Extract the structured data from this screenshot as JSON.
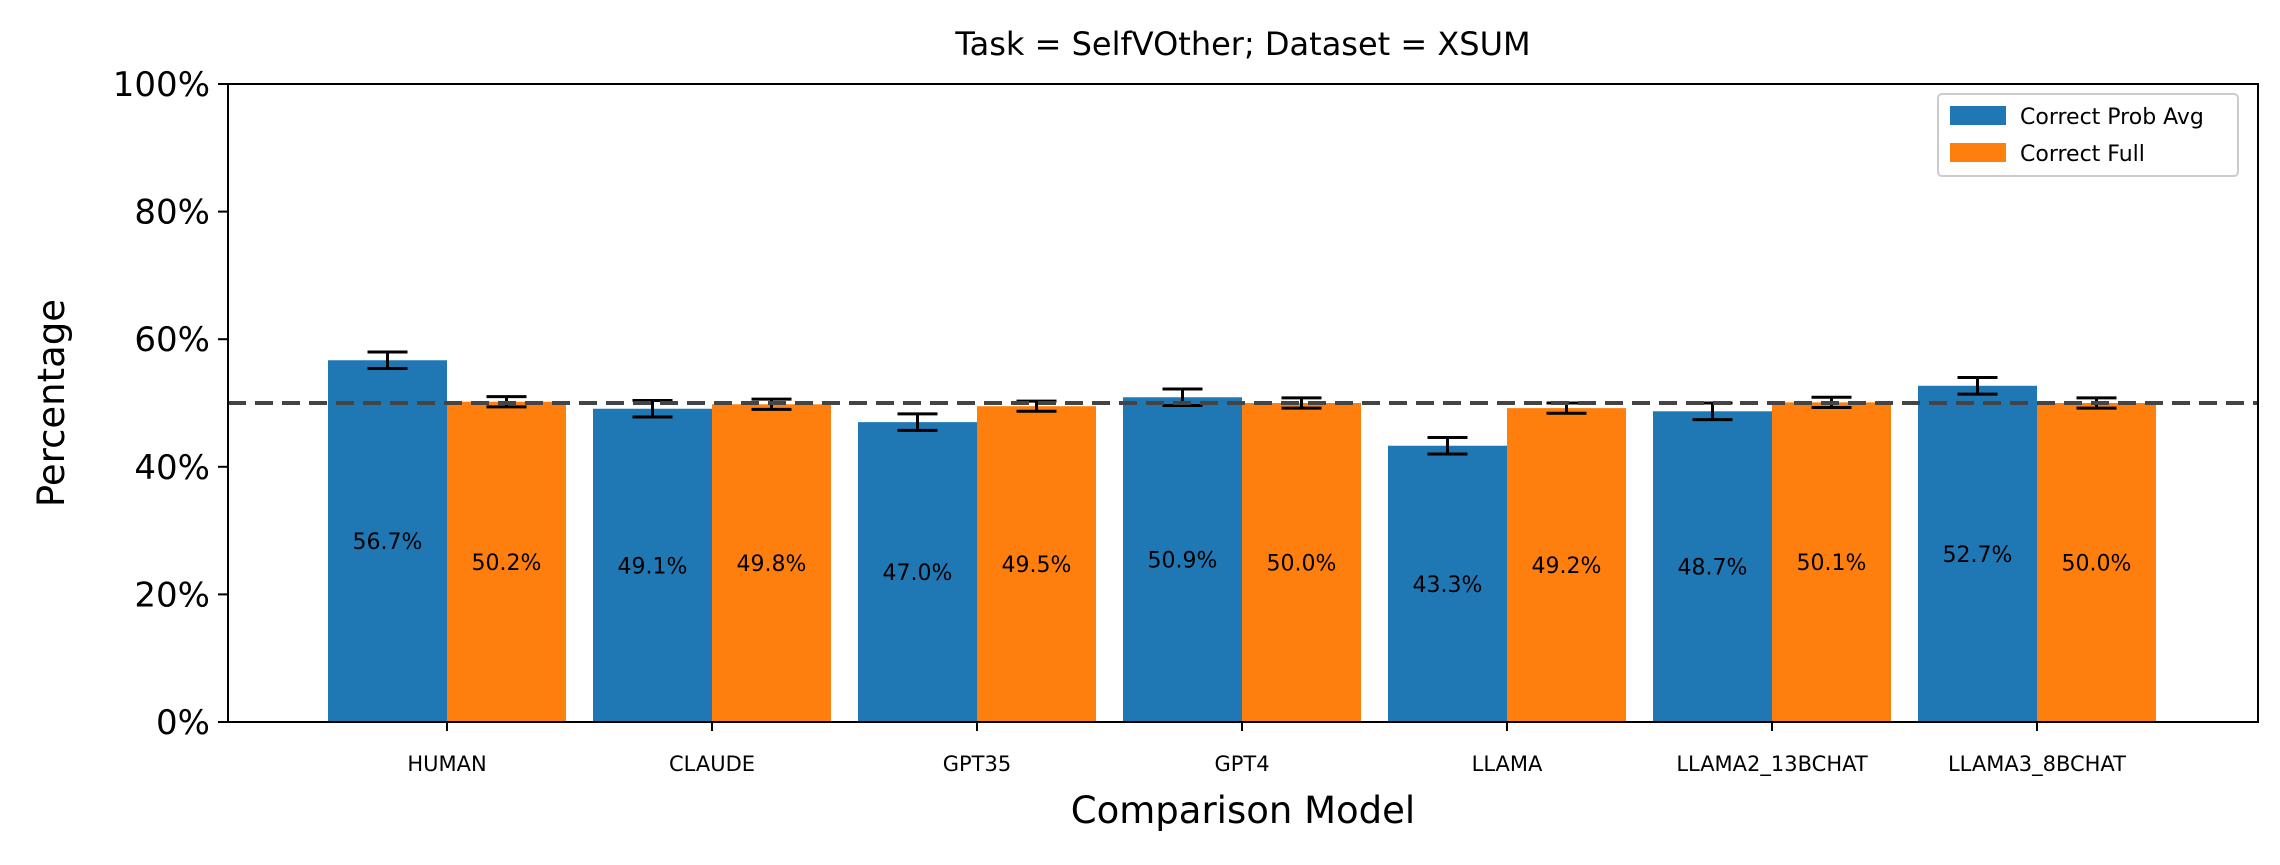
{
  "chart_data": {
    "type": "bar",
    "title": "Task = SelfVOther;  Dataset = XSUM",
    "xlabel": "Comparison Model",
    "ylabel": "Percentage",
    "ylim": [
      0,
      100
    ],
    "y_ticks": [
      "0%",
      "20%",
      "40%",
      "60%",
      "80%",
      "100%"
    ],
    "y_tick_values": [
      0,
      20,
      40,
      60,
      80,
      100
    ],
    "categories": [
      "HUMAN",
      "CLAUDE",
      "GPT35",
      "GPT4",
      "LLAMA",
      "LLAMA2_13BCHAT",
      "LLAMA3_8BCHAT"
    ],
    "series": [
      {
        "name": "Correct Prob Avg",
        "color": "#1f77b4",
        "values": [
          56.7,
          49.1,
          47.0,
          50.9,
          43.3,
          48.7,
          52.7
        ],
        "labels": [
          "56.7%",
          "49.1%",
          "47.0%",
          "50.9%",
          "43.3%",
          "48.7%",
          "52.7%"
        ],
        "error": [
          1.3,
          1.3,
          1.3,
          1.3,
          1.3,
          1.3,
          1.3
        ]
      },
      {
        "name": "Correct Full",
        "color": "#ff7f0e",
        "values": [
          50.2,
          49.8,
          49.5,
          50.0,
          49.2,
          50.1,
          50.0
        ],
        "labels": [
          "50.2%",
          "49.8%",
          "49.5%",
          "50.0%",
          "49.2%",
          "50.1%",
          "50.0%"
        ],
        "error": [
          0.8,
          0.8,
          0.8,
          0.8,
          0.8,
          0.8,
          0.8
        ]
      }
    ],
    "reference_line": {
      "value": 50,
      "style": "dashed",
      "color": "#444444"
    },
    "grid": false,
    "legend": "top-right"
  }
}
